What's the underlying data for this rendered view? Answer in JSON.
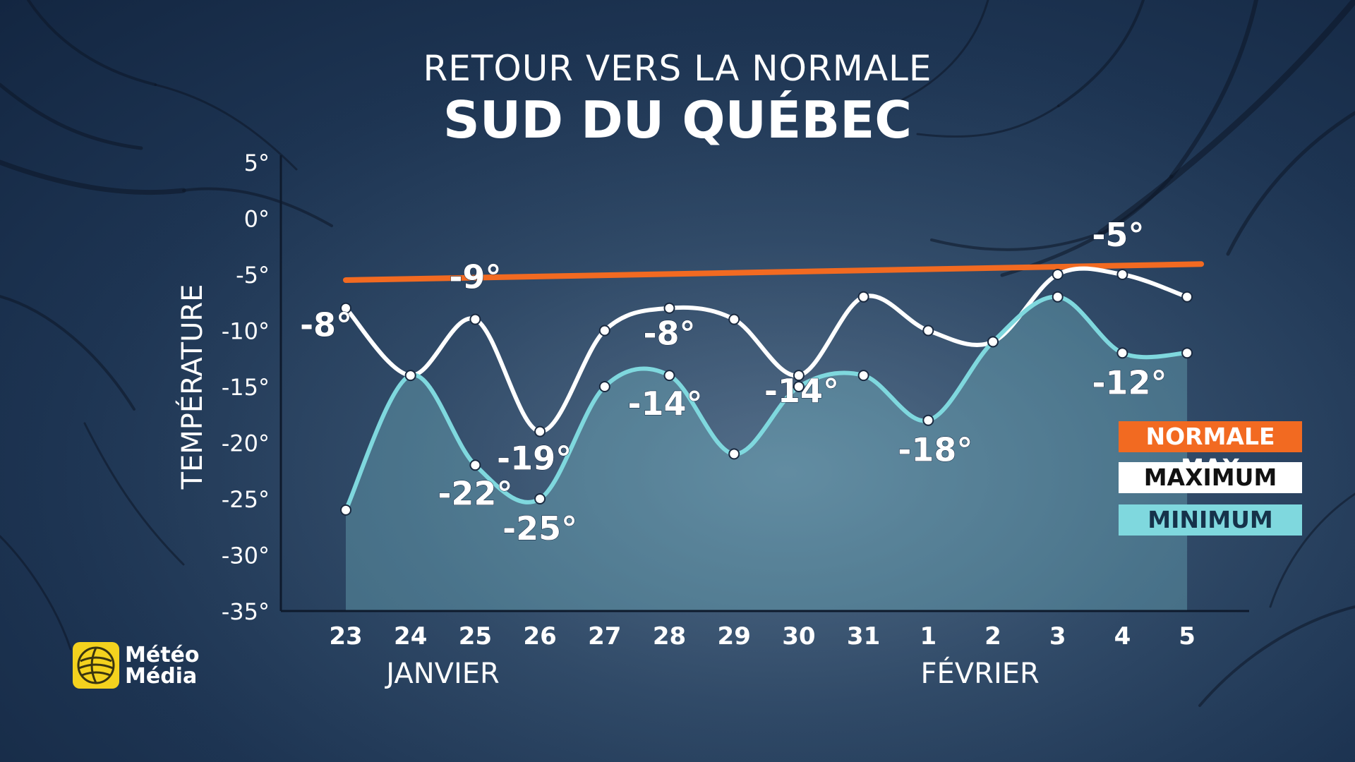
{
  "title": {
    "line1": "RETOUR VERS LA NORMALE",
    "line2": "SUD DU QUÉBEC"
  },
  "legend": {
    "normal_max": "NORMALE MAX",
    "maximum": "MAXIMUM",
    "minimum": "MINIMUM"
  },
  "logo": {
    "line1": "Météo",
    "line2": "Média"
  },
  "colors": {
    "normal_max": "#f26a21",
    "maximum": "#ffffff",
    "minimum": "#7fd8de"
  },
  "chart_data": {
    "type": "line",
    "ylabel": "TEMPÉRATURE",
    "ylim": [
      -35,
      5
    ],
    "yticks": [
      {
        "value": 5,
        "label": "5°"
      },
      {
        "value": 0,
        "label": "0°"
      },
      {
        "value": -5,
        "label": "-5°"
      },
      {
        "value": -10,
        "label": "-10°"
      },
      {
        "value": -15,
        "label": "-15°"
      },
      {
        "value": -20,
        "label": "-20°"
      },
      {
        "value": -25,
        "label": "-25°"
      },
      {
        "value": -30,
        "label": "-30°"
      },
      {
        "value": -35,
        "label": "-35°"
      }
    ],
    "categories": [
      "23",
      "24",
      "25",
      "26",
      "27",
      "28",
      "29",
      "30",
      "31",
      "1",
      "2",
      "3",
      "4",
      "5"
    ],
    "month_labels": [
      {
        "text": "JANVIER",
        "center_index": 1.5
      },
      {
        "text": "FÉVRIER",
        "center_index": 9.8
      }
    ],
    "series": [
      {
        "name": "NORMALE MAX",
        "key": "normal_max",
        "values": [
          -5.5,
          -5.4,
          -5.3,
          -5.2,
          -5.1,
          -5.0,
          -4.9,
          -4.8,
          -4.7,
          -4.6,
          -4.5,
          -4.4,
          -4.3,
          -4.2
        ]
      },
      {
        "name": "MAXIMUM",
        "key": "maximum",
        "values": [
          -8,
          -14,
          -9,
          -19,
          -10,
          -8,
          -9,
          -14,
          -7,
          -10,
          -11,
          -5,
          -5,
          -7
        ]
      },
      {
        "name": "MINIMUM",
        "key": "minimum",
        "values": [
          -26,
          -14,
          -22,
          -25,
          -15,
          -14,
          -21,
          -15,
          -14,
          -18,
          -11,
          -7,
          -12,
          -12
        ]
      }
    ],
    "annotations": [
      {
        "text": "-8°",
        "index": 0,
        "value": -8,
        "series": "maximum"
      },
      {
        "text": "-9°",
        "index": 2,
        "value": -9,
        "series": "maximum"
      },
      {
        "text": "-19°",
        "index": 3,
        "value": -19,
        "series": "maximum"
      },
      {
        "text": "-8°",
        "index": 5,
        "value": -8,
        "series": "maximum"
      },
      {
        "text": "-14°",
        "index": 7,
        "value": -14,
        "series": "maximum"
      },
      {
        "text": "-5°",
        "index": 12,
        "value": -5,
        "series": "maximum"
      },
      {
        "text": "-22°",
        "index": 2,
        "value": -22,
        "series": "minimum"
      },
      {
        "text": "-25°",
        "index": 3,
        "value": -25,
        "series": "minimum"
      },
      {
        "text": "-14°",
        "index": 5,
        "value": -14,
        "series": "minimum"
      },
      {
        "text": "-18°",
        "index": 9,
        "value": -18,
        "series": "minimum"
      },
      {
        "text": "-12°",
        "index": 12,
        "value": -12,
        "series": "minimum"
      }
    ]
  }
}
